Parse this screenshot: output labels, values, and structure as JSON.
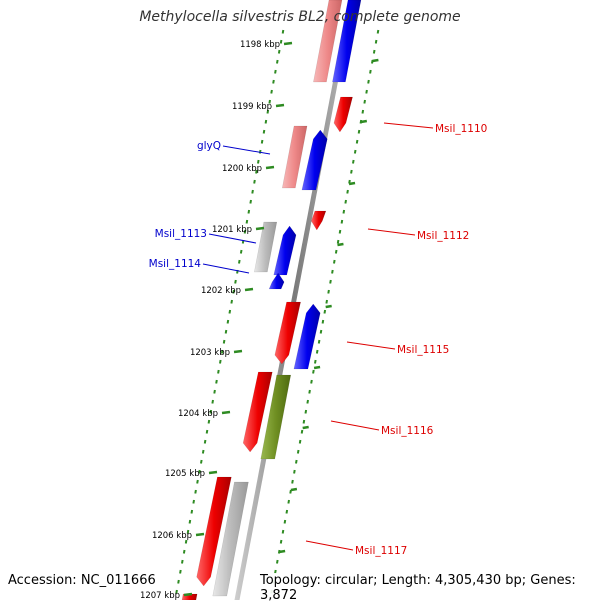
{
  "title": "Methylocella silvestris BL2, complete genome",
  "footer": {
    "accession": "Accession: NC_011666",
    "summary": "Topology: circular; Length: 4,305,430 bp; Genes: 3,872"
  },
  "colors": {
    "backbone": "#888888",
    "tick_dots": "#2e8b22",
    "label_left": "#0000cc",
    "label_right": "#dd0000",
    "tick_text": "#000000"
  },
  "ticks": [
    {
      "label": "1198 kbp"
    },
    {
      "label": "1199 kbp"
    },
    {
      "label": "1200 kbp"
    },
    {
      "label": "1201 kbp"
    },
    {
      "label": "1202 kbp"
    },
    {
      "label": "1203 kbp"
    },
    {
      "label": "1204 kbp"
    },
    {
      "label": "1205 kbp"
    },
    {
      "label": "1206 kbp"
    },
    {
      "label": "1207 kbp"
    }
  ],
  "gene_labels": [
    {
      "text": "glyQ",
      "side": "left",
      "color": "#0000cc"
    },
    {
      "text": "Msil_1113",
      "side": "left",
      "color": "#0000cc"
    },
    {
      "text": "Msil_1114",
      "side": "left",
      "color": "#0000cc"
    },
    {
      "text": "Msil_1110",
      "side": "right",
      "color": "#dd0000"
    },
    {
      "text": "Msil_1112",
      "side": "right",
      "color": "#dd0000"
    },
    {
      "text": "Msil_1115",
      "side": "right",
      "color": "#dd0000"
    },
    {
      "text": "Msil_1116",
      "side": "right",
      "color": "#dd0000"
    },
    {
      "text": "Msil_1117",
      "side": "right",
      "color": "#dd0000"
    }
  ]
}
